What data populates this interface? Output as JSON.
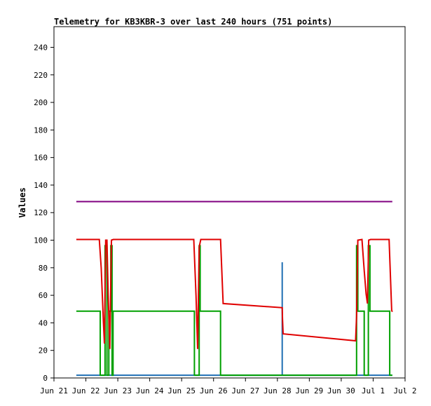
{
  "chart_data": {
    "type": "line",
    "title": "Telemetry for KB3KBR-3 over last 240 hours (751 points)",
    "xlabel": "",
    "ylabel": "Values",
    "ylim": [
      0,
      255
    ],
    "xlim": [
      0,
      11
    ],
    "y_ticks": [
      0,
      20,
      40,
      60,
      80,
      100,
      120,
      140,
      160,
      180,
      200,
      220,
      240
    ],
    "x_ticks": [
      {
        "x": 0,
        "label": "Jun 21"
      },
      {
        "x": 1,
        "label": "Jun 22"
      },
      {
        "x": 2,
        "label": "Jun 23"
      },
      {
        "x": 3,
        "label": "Jun 24"
      },
      {
        "x": 4,
        "label": "Jun 25"
      },
      {
        "x": 5,
        "label": "Jun 26"
      },
      {
        "x": 6,
        "label": "Jun 27"
      },
      {
        "x": 7,
        "label": "Jun 28"
      },
      {
        "x": 8,
        "label": "Jun 29"
      },
      {
        "x": 9,
        "label": "Jun 30"
      },
      {
        "x": 10,
        "label": "Jul 1"
      },
      {
        "x": 11,
        "label": "Jul 2"
      }
    ],
    "grid": false,
    "series": [
      {
        "color": "#800080",
        "points": [
          [
            0.7,
            128
          ],
          [
            10.6,
            128
          ]
        ]
      },
      {
        "color": "#1f6fb4",
        "points": [
          [
            0.7,
            2
          ],
          [
            7.15,
            2
          ],
          [
            7.15,
            84
          ],
          [
            7.15,
            2
          ],
          [
            10.6,
            2
          ]
        ]
      },
      {
        "color": "#00a000",
        "points": [
          [
            0.7,
            48.5
          ],
          [
            1.45,
            48.5
          ],
          [
            1.45,
            2
          ],
          [
            1.6,
            2
          ],
          [
            1.6,
            96
          ],
          [
            1.66,
            96
          ],
          [
            1.66,
            2
          ],
          [
            1.72,
            2
          ],
          [
            1.72,
            48.5
          ],
          [
            1.78,
            48.5
          ],
          [
            1.78,
            96
          ],
          [
            1.82,
            96
          ],
          [
            1.82,
            2
          ],
          [
            1.85,
            2
          ],
          [
            1.85,
            48.5
          ],
          [
            4.4,
            48.5
          ],
          [
            4.4,
            2
          ],
          [
            4.55,
            2
          ],
          [
            4.55,
            96
          ],
          [
            4.58,
            96
          ],
          [
            4.58,
            48.5
          ],
          [
            5.22,
            48.5
          ],
          [
            5.22,
            2
          ],
          [
            9.48,
            2
          ],
          [
            9.48,
            96
          ],
          [
            9.52,
            96
          ],
          [
            9.52,
            48.5
          ],
          [
            9.72,
            48.5
          ],
          [
            9.72,
            2
          ],
          [
            9.85,
            2
          ],
          [
            9.85,
            96
          ],
          [
            9.9,
            96
          ],
          [
            9.9,
            48.5
          ],
          [
            10.52,
            48.5
          ],
          [
            10.52,
            2
          ],
          [
            10.6,
            2
          ]
        ]
      },
      {
        "color": "#e00000",
        "points": [
          [
            0.7,
            100.5
          ],
          [
            1.42,
            100.5
          ],
          [
            1.48,
            80
          ],
          [
            1.55,
            40
          ],
          [
            1.58,
            25
          ],
          [
            1.62,
            100
          ],
          [
            1.66,
            100
          ],
          [
            1.7,
            60
          ],
          [
            1.75,
            21
          ],
          [
            1.8,
            100
          ],
          [
            1.86,
            100.5
          ],
          [
            4.38,
            100.5
          ],
          [
            4.45,
            60
          ],
          [
            4.5,
            21
          ],
          [
            4.55,
            95
          ],
          [
            4.6,
            100.5
          ],
          [
            5.22,
            100.5
          ],
          [
            5.3,
            54
          ],
          [
            7.15,
            51
          ],
          [
            7.16,
            43
          ],
          [
            7.18,
            32
          ],
          [
            9.45,
            27
          ],
          [
            9.48,
            45
          ],
          [
            9.52,
            100
          ],
          [
            9.65,
            100.5
          ],
          [
            9.72,
            78
          ],
          [
            9.78,
            61
          ],
          [
            9.82,
            54
          ],
          [
            9.86,
            100
          ],
          [
            9.92,
            100.5
          ],
          [
            10.5,
            100.5
          ],
          [
            10.58,
            49
          ],
          [
            10.6,
            48
          ]
        ]
      }
    ]
  }
}
